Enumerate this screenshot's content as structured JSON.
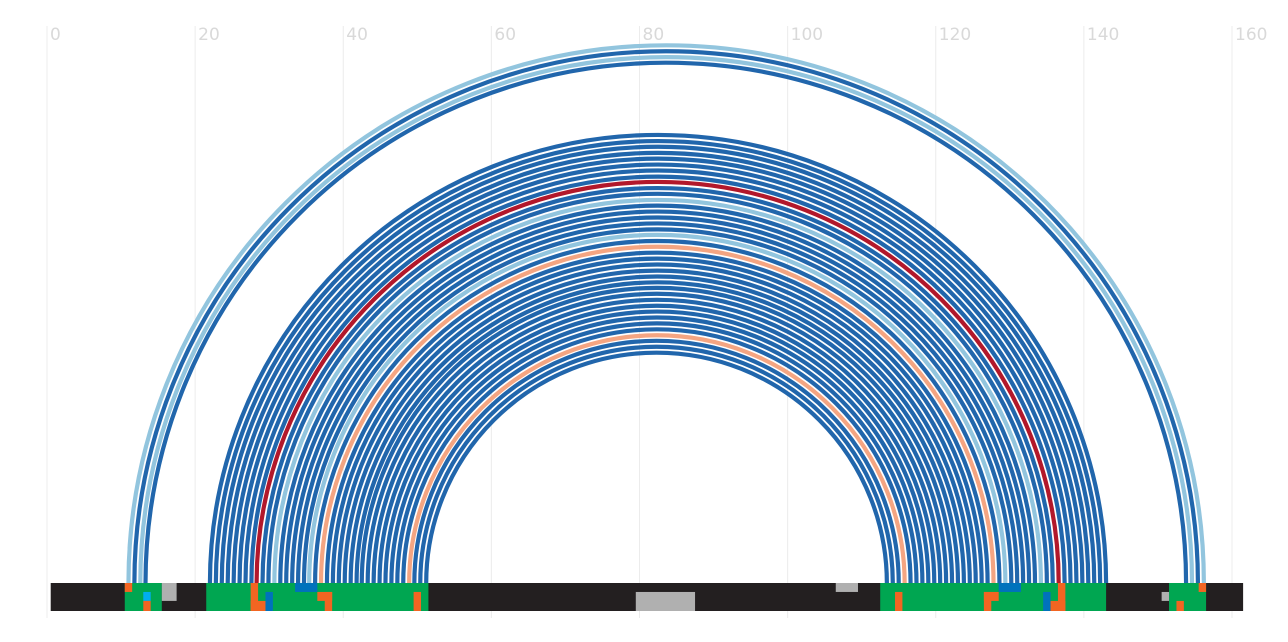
{
  "chart_data": {
    "type": "arc",
    "title": "",
    "xlabel": "",
    "ylabel": "",
    "xlim": [
      0,
      160
    ],
    "x_ticks": [
      "0",
      "20",
      "40",
      "60",
      "80",
      "100",
      "120",
      "140",
      "160"
    ],
    "grid": true,
    "colors": {
      "dark_blue": "#2166ac",
      "light_blue": "#92c5de",
      "red": "#b2182b",
      "salmon": "#f4a582",
      "track_background": "#231f20",
      "green": "#00a651",
      "orange": "#f26522",
      "gray": "#b0b0b0",
      "cyan": "#00aeef",
      "blue": "#0072bc",
      "grid": "#ececec",
      "tick_text": "#d9d9d9"
    },
    "arcs": [
      {
        "start": 11.0,
        "end": 156.2,
        "color": "light_blue"
      },
      {
        "start": 11.8,
        "end": 155.4,
        "color": "dark_blue"
      },
      {
        "start": 12.6,
        "end": 154.6,
        "color": "light_blue"
      },
      {
        "start": 13.3,
        "end": 153.8,
        "color": "dark_blue"
      },
      {
        "start": 22.0,
        "end": 143.0,
        "color": "dark_blue"
      },
      {
        "start": 22.8,
        "end": 142.2,
        "color": "dark_blue"
      },
      {
        "start": 23.6,
        "end": 141.4,
        "color": "dark_blue"
      },
      {
        "start": 24.4,
        "end": 140.6,
        "color": "dark_blue"
      },
      {
        "start": 25.2,
        "end": 139.8,
        "color": "dark_blue"
      },
      {
        "start": 26.0,
        "end": 139.0,
        "color": "dark_blue"
      },
      {
        "start": 26.8,
        "end": 138.2,
        "color": "dark_blue"
      },
      {
        "start": 27.6,
        "end": 137.4,
        "color": "dark_blue"
      },
      {
        "start": 28.3,
        "end": 136.6,
        "color": "red"
      },
      {
        "start": 29.1,
        "end": 135.8,
        "color": "dark_blue"
      },
      {
        "start": 29.9,
        "end": 135.0,
        "color": "dark_blue"
      },
      {
        "start": 30.7,
        "end": 134.2,
        "color": "light_blue"
      },
      {
        "start": 31.5,
        "end": 133.4,
        "color": "dark_blue"
      },
      {
        "start": 32.3,
        "end": 132.6,
        "color": "dark_blue"
      },
      {
        "start": 33.1,
        "end": 131.8,
        "color": "dark_blue"
      },
      {
        "start": 33.9,
        "end": 131.0,
        "color": "dark_blue"
      },
      {
        "start": 34.7,
        "end": 130.2,
        "color": "dark_blue"
      },
      {
        "start": 35.4,
        "end": 129.4,
        "color": "light_blue"
      },
      {
        "start": 36.2,
        "end": 128.6,
        "color": "dark_blue"
      },
      {
        "start": 37.0,
        "end": 127.8,
        "color": "salmon"
      },
      {
        "start": 37.8,
        "end": 127.0,
        "color": "dark_blue"
      },
      {
        "start": 38.6,
        "end": 126.2,
        "color": "dark_blue"
      },
      {
        "start": 39.4,
        "end": 125.4,
        "color": "dark_blue"
      },
      {
        "start": 40.2,
        "end": 124.6,
        "color": "dark_blue"
      },
      {
        "start": 41.0,
        "end": 123.8,
        "color": "dark_blue"
      },
      {
        "start": 41.8,
        "end": 123.0,
        "color": "dark_blue"
      },
      {
        "start": 42.5,
        "end": 122.2,
        "color": "dark_blue"
      },
      {
        "start": 43.3,
        "end": 121.4,
        "color": "dark_blue"
      },
      {
        "start": 44.1,
        "end": 120.6,
        "color": "dark_blue"
      },
      {
        "start": 44.9,
        "end": 119.8,
        "color": "dark_blue"
      },
      {
        "start": 45.7,
        "end": 119.0,
        "color": "dark_blue"
      },
      {
        "start": 46.5,
        "end": 118.2,
        "color": "dark_blue"
      },
      {
        "start": 47.3,
        "end": 117.4,
        "color": "dark_blue"
      },
      {
        "start": 48.1,
        "end": 116.6,
        "color": "dark_blue"
      },
      {
        "start": 48.9,
        "end": 115.8,
        "color": "salmon"
      },
      {
        "start": 49.6,
        "end": 115.0,
        "color": "dark_blue"
      },
      {
        "start": 50.4,
        "end": 114.2,
        "color": "dark_blue"
      },
      {
        "start": 51.2,
        "end": 113.4,
        "color": "dark_blue"
      }
    ],
    "track": {
      "range": [
        0.5,
        161.5
      ],
      "segments": [
        {
          "start": 10.5,
          "end": 15.5,
          "color": "green"
        },
        {
          "start": 10.5,
          "end": 11.5,
          "color": "orange",
          "lane": "top"
        },
        {
          "start": 13.0,
          "end": 14.0,
          "color": "cyan",
          "lane": "mid"
        },
        {
          "start": 13.0,
          "end": 14.0,
          "color": "orange",
          "lane": "bottom"
        },
        {
          "start": 15.5,
          "end": 17.5,
          "color": "gray",
          "lane": "upper2"
        },
        {
          "start": 21.5,
          "end": 51.5,
          "color": "green"
        },
        {
          "start": 27.5,
          "end": 28.5,
          "color": "orange"
        },
        {
          "start": 27.5,
          "end": 29.5,
          "color": "orange",
          "lane": "bottom"
        },
        {
          "start": 29.5,
          "end": 30.5,
          "color": "blue",
          "lane": "lower2"
        },
        {
          "start": 33.5,
          "end": 36.5,
          "color": "blue",
          "lane": "top"
        },
        {
          "start": 36.5,
          "end": 38.5,
          "color": "orange",
          "lane": "mid"
        },
        {
          "start": 37.5,
          "end": 38.5,
          "color": "orange",
          "lane": "lower2"
        },
        {
          "start": 49.5,
          "end": 50.5,
          "color": "orange",
          "lane": "lower2"
        },
        {
          "start": 79.5,
          "end": 87.5,
          "color": "gray",
          "lane": "lower2"
        },
        {
          "start": 106.5,
          "end": 109.5,
          "color": "gray",
          "lane": "top"
        },
        {
          "start": 112.5,
          "end": 143.0,
          "color": "green"
        },
        {
          "start": 114.5,
          "end": 115.5,
          "color": "orange",
          "lane": "lower2"
        },
        {
          "start": 126.5,
          "end": 128.5,
          "color": "orange",
          "lane": "mid"
        },
        {
          "start": 126.5,
          "end": 127.5,
          "color": "orange",
          "lane": "lower2"
        },
        {
          "start": 128.5,
          "end": 131.5,
          "color": "blue",
          "lane": "top"
        },
        {
          "start": 134.5,
          "end": 135.5,
          "color": "blue",
          "lane": "lower2"
        },
        {
          "start": 136.5,
          "end": 137.5,
          "color": "orange"
        },
        {
          "start": 135.5,
          "end": 137.5,
          "color": "orange",
          "lane": "bottom"
        },
        {
          "start": 151.5,
          "end": 156.5,
          "color": "green"
        },
        {
          "start": 150.5,
          "end": 151.5,
          "color": "gray",
          "lane": "mid"
        },
        {
          "start": 155.5,
          "end": 156.5,
          "color": "orange",
          "lane": "top"
        },
        {
          "start": 152.5,
          "end": 153.5,
          "color": "orange",
          "lane": "bottom"
        }
      ]
    }
  }
}
